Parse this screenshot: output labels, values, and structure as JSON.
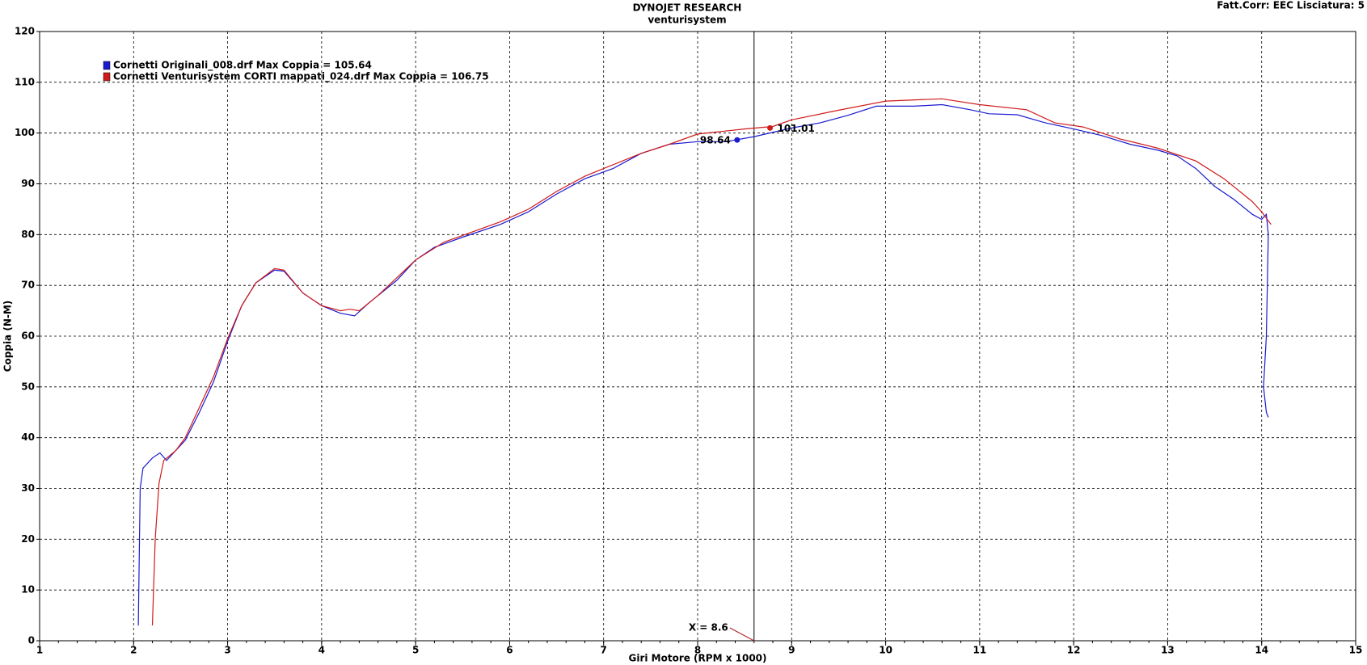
{
  "chart_data": {
    "type": "line",
    "title": "DYNOJET RESEARCH",
    "subtitle": "venturisystem",
    "corner_note": "Fatt.Corr: EEC  Lisciatura: 5",
    "x_label": "Giri Motore (RPM x 1000)",
    "y_label": "Coppia (N-M)",
    "xlim": [
      1,
      15
    ],
    "ylim": [
      0,
      120
    ],
    "xticks": [
      1,
      2,
      3,
      4,
      5,
      6,
      7,
      8,
      9,
      10,
      11,
      12,
      13,
      14,
      15
    ],
    "yticks": [
      0,
      10,
      20,
      30,
      40,
      50,
      60,
      70,
      80,
      90,
      100,
      110,
      120
    ],
    "grid": true,
    "cursor": {
      "value": 8.6,
      "label": "X = 8.6"
    },
    "series": [
      {
        "name": "Cornetti Originali_008.drf Max Coppia = 105.64",
        "color": "#1a1ad0",
        "x": [
          2.05,
          2.07,
          2.1,
          2.2,
          2.28,
          2.35,
          2.45,
          2.55,
          2.7,
          2.85,
          3.0,
          3.15,
          3.3,
          3.5,
          3.6,
          3.8,
          4.0,
          4.2,
          4.35,
          4.5,
          4.8,
          5.0,
          5.2,
          5.5,
          5.9,
          6.2,
          6.5,
          6.8,
          7.1,
          7.4,
          7.7,
          8.0,
          8.3,
          8.6,
          9.0,
          9.3,
          9.6,
          9.9,
          10.3,
          10.6,
          10.9,
          11.1,
          11.4,
          11.7,
          12.0,
          12.3,
          12.6,
          12.9,
          13.1,
          13.3,
          13.5,
          13.7,
          13.9,
          14.0,
          14.05,
          14.07,
          14.05,
          14.02,
          14.05,
          14.07
        ],
        "values": [
          3,
          30,
          34,
          36,
          37,
          35.5,
          37.5,
          39.5,
          45,
          51,
          59,
          66,
          70.5,
          73,
          72.8,
          68.5,
          66,
          64.5,
          64,
          66.5,
          71,
          75,
          77.5,
          79.5,
          82,
          84.5,
          88,
          91,
          93,
          96,
          97.8,
          98.3,
          98.3,
          99.3,
          101,
          102,
          103.5,
          105.3,
          105.3,
          105.6,
          104.6,
          103.8,
          103.6,
          102,
          100.8,
          99.5,
          97.8,
          96.6,
          95.5,
          93,
          89.5,
          87,
          84,
          83,
          84,
          80,
          60,
          50,
          45,
          44
        ],
        "marker": {
          "x": 8.42,
          "value": 98.64
        }
      },
      {
        "name": "Cornetti Venturisystem CORTI mappati_024.drf Max Coppia = 106.75",
        "color": "#d01a1a",
        "x": [
          2.2,
          2.23,
          2.27,
          2.32,
          2.45,
          2.55,
          2.7,
          2.85,
          3.0,
          3.15,
          3.3,
          3.5,
          3.6,
          3.8,
          4.0,
          4.2,
          4.3,
          4.4,
          4.6,
          4.8,
          5.0,
          5.3,
          5.6,
          5.9,
          6.2,
          6.5,
          6.8,
          7.0,
          7.4,
          7.7,
          8.0,
          8.5,
          8.8,
          9.0,
          9.5,
          10.0,
          10.6,
          11.0,
          11.5,
          11.8,
          12.1,
          12.5,
          12.9,
          13.3,
          13.6,
          13.9,
          14.0,
          14.1
        ],
        "values": [
          3,
          20,
          31,
          35.5,
          37.5,
          40,
          46,
          52,
          59.5,
          66,
          70.5,
          73.3,
          73,
          68.5,
          66,
          65,
          65.3,
          65,
          68,
          71.5,
          75,
          78.5,
          80.5,
          82.5,
          85,
          88.5,
          91.5,
          93,
          96,
          97.8,
          99.8,
          100.8,
          101.3,
          102.6,
          104.5,
          106.3,
          106.75,
          105.6,
          104.6,
          102,
          101.2,
          98.8,
          97,
          94.5,
          91,
          86.5,
          84.5,
          82
        ],
        "marker": {
          "x": 8.77,
          "value": 101.01
        }
      }
    ]
  }
}
